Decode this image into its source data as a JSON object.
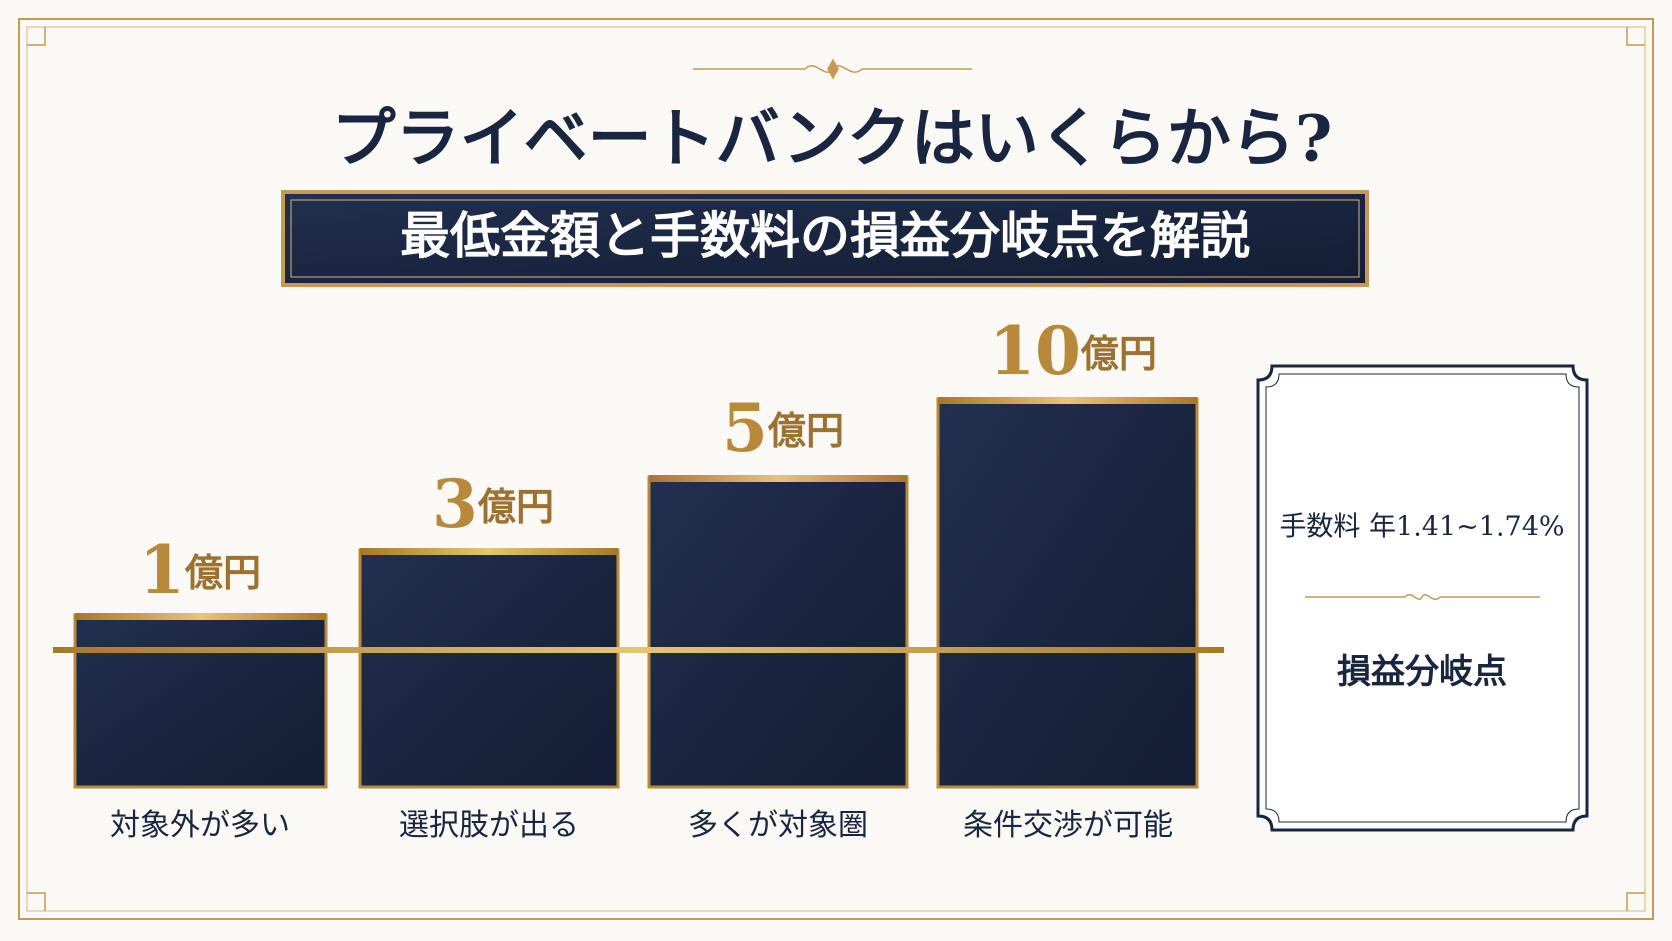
{
  "header": {
    "title": "プライベートバンクはいくらから?",
    "subtitle": "最低金額と手数料の損益分岐点を解説"
  },
  "bars": [
    {
      "amount": "1",
      "unit": "億円",
      "caption": "対象外が多い"
    },
    {
      "amount": "3",
      "unit": "億円",
      "caption": "選択肢が出る"
    },
    {
      "amount": "5",
      "unit": "億円",
      "caption": "多くが対象圏"
    },
    {
      "amount": "10",
      "unit": "億円",
      "caption": "条件交渉が可能"
    }
  ],
  "side_box": {
    "fee": "手数料 年1.41~1.74%",
    "label": "損益分岐点"
  }
}
